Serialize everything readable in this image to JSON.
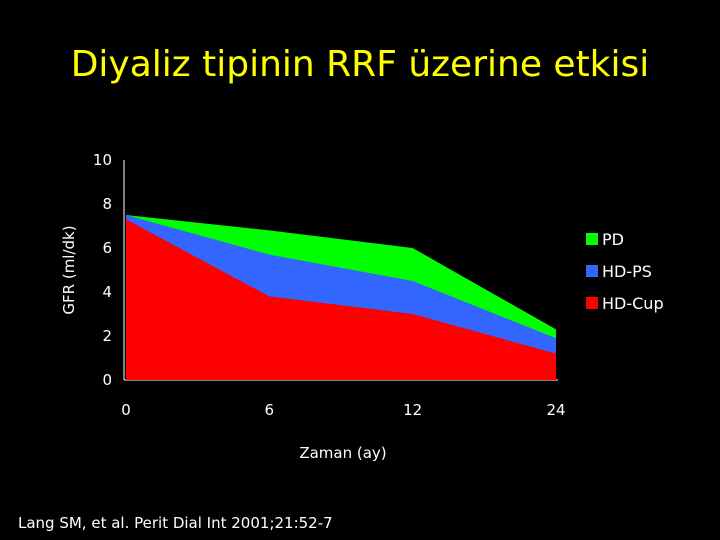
{
  "slide": {
    "title": "Diyaliz tipinin RRF üzerine etkisi",
    "citation": "Lang SM, et al. Perit Dial Int 2001;21:52-7"
  },
  "chart_data": {
    "type": "area",
    "stacked": false,
    "title": "",
    "xlabel": "Zaman (ay)",
    "ylabel": "GFR (ml/dk)",
    "categories": [
      "0",
      "6",
      "12",
      "24"
    ],
    "ylim": [
      0,
      10
    ],
    "yticks": [
      "0",
      "2",
      "4",
      "6",
      "8",
      "10"
    ],
    "grid": false,
    "legend_position": "right",
    "series": [
      {
        "name": "PD",
        "color": "#00ff00",
        "values": [
          7.5,
          6.8,
          6.0,
          2.3
        ]
      },
      {
        "name": "HD-PS",
        "color": "#3366ff",
        "values": [
          7.5,
          5.7,
          4.5,
          1.9
        ]
      },
      {
        "name": "HD-Cup",
        "color": "#ff0000",
        "values": [
          7.3,
          3.8,
          3.0,
          1.2
        ]
      }
    ]
  }
}
